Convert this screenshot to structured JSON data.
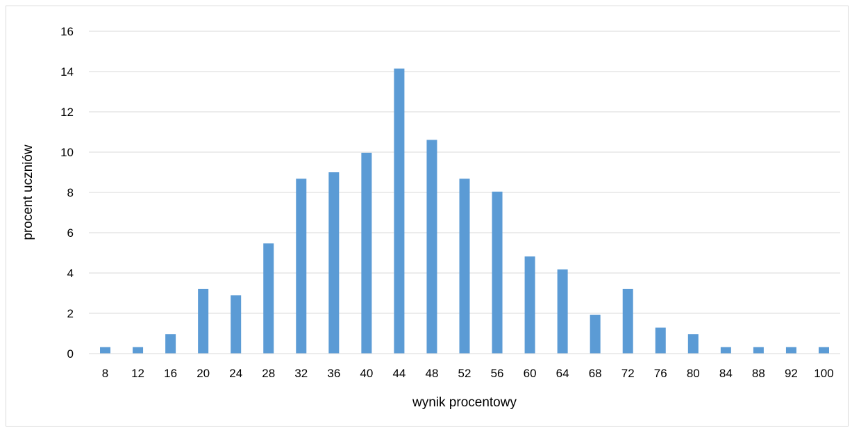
{
  "chart_data": {
    "type": "bar",
    "title": "",
    "xlabel": "wynik procentowy",
    "ylabel": "procent uczniów",
    "categories": [
      "8",
      "12",
      "16",
      "20",
      "24",
      "28",
      "32",
      "36",
      "40",
      "44",
      "48",
      "52",
      "56",
      "60",
      "64",
      "68",
      "72",
      "76",
      "80",
      "84",
      "88",
      "92",
      "100"
    ],
    "values": [
      0.32,
      0.32,
      0.96,
      3.21,
      2.89,
      5.47,
      8.68,
      9.0,
      9.97,
      14.15,
      10.61,
      8.68,
      8.04,
      4.82,
      4.18,
      1.93,
      3.21,
      1.29,
      0.96,
      0.32,
      0.32,
      0.32,
      0.32
    ],
    "ylim": [
      0,
      16
    ],
    "yticks": [
      "0",
      "2",
      "4",
      "6",
      "8",
      "10",
      "12",
      "14",
      "16"
    ],
    "grid": true,
    "legend": "none",
    "bar_color": "#5b9bd5",
    "grid_color": "#d9d9d9"
  }
}
